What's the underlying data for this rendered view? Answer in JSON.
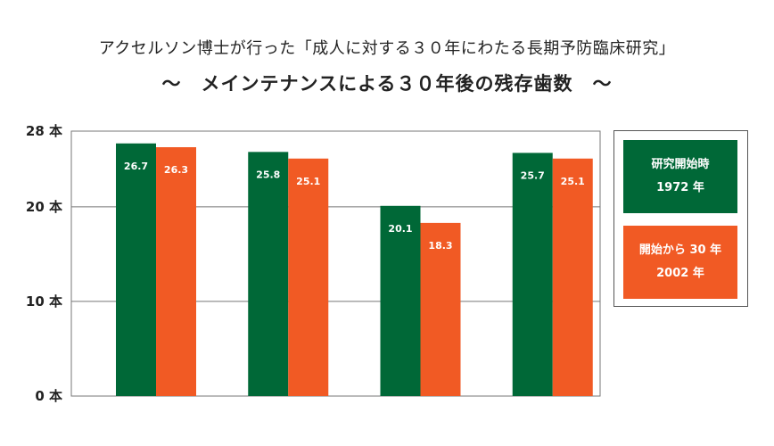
{
  "colors": {
    "series1": "#006837",
    "series2": "#f15a24",
    "grid": "#777777"
  },
  "chart_data": {
    "type": "bar",
    "title": "アクセルソン博士が行った「成人に対する３０年にわたる長期予防臨床研究」",
    "subtitle": "〜　メインテナンスによる３０年後の残存歯数　〜",
    "categories": [
      "",
      "",
      "",
      ""
    ],
    "series": [
      {
        "name": "研究開始時",
        "sublabel": "1972 年",
        "values": [
          26.7,
          25.8,
          20.1,
          25.7
        ],
        "labels": [
          "26.7",
          "25.8",
          "20.1",
          "25.7"
        ]
      },
      {
        "name": "開始から 30 年",
        "sublabel": "2002 年",
        "values": [
          26.3,
          25.1,
          18.3,
          25.1
        ],
        "labels": [
          "26.3",
          "25.1",
          "18.3",
          "25.1"
        ]
      }
    ],
    "ylim": [
      0,
      28
    ],
    "yticks": [
      0,
      10,
      20,
      28
    ],
    "ytick_labels": [
      "0 本",
      "10 本",
      "20 本",
      "28 本"
    ],
    "grid": true,
    "legend_position": "right"
  }
}
